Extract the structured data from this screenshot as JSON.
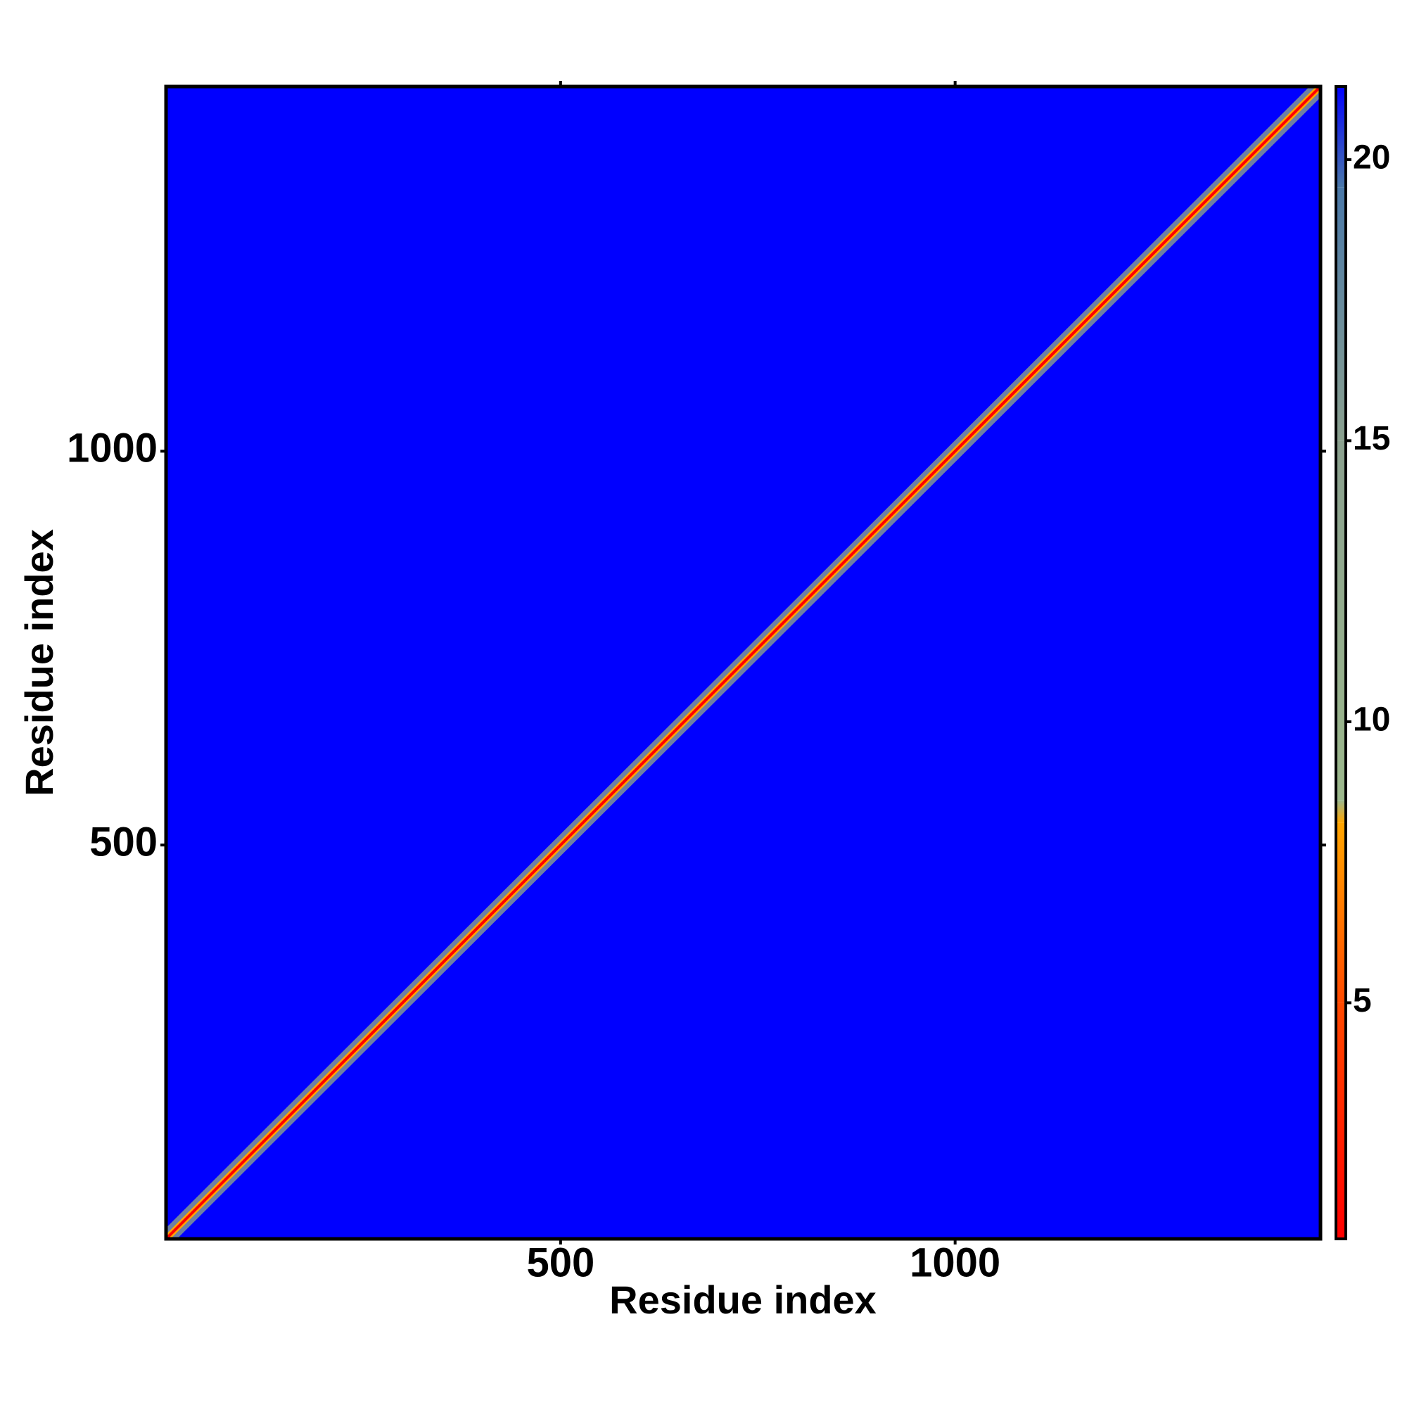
{
  "chart_data": {
    "type": "heatmap",
    "xlabel": "Residue index",
    "ylabel": "Residue index",
    "xlim": [
      0,
      1463
    ],
    "ylim": [
      0,
      1463
    ],
    "xticks": [
      500,
      1000
    ],
    "yticks": [
      500,
      1000
    ],
    "diagonal": true,
    "colorbar": {
      "lim": [
        0.8,
        21.3
      ],
      "ticks": [
        5,
        10,
        15,
        20
      ],
      "stops": [
        {
          "value": 0.8,
          "color": "#ff0000"
        },
        {
          "value": 5,
          "color": "#ff4a00"
        },
        {
          "value": 8.2,
          "color": "#ffa500"
        },
        {
          "value": 8.6,
          "color": "#9cb88c"
        },
        {
          "value": 15,
          "color": "#8aa08e"
        },
        {
          "value": 19.5,
          "color": "#4a78a8"
        },
        {
          "value": 21.3,
          "color": "#0000ff"
        }
      ]
    }
  }
}
